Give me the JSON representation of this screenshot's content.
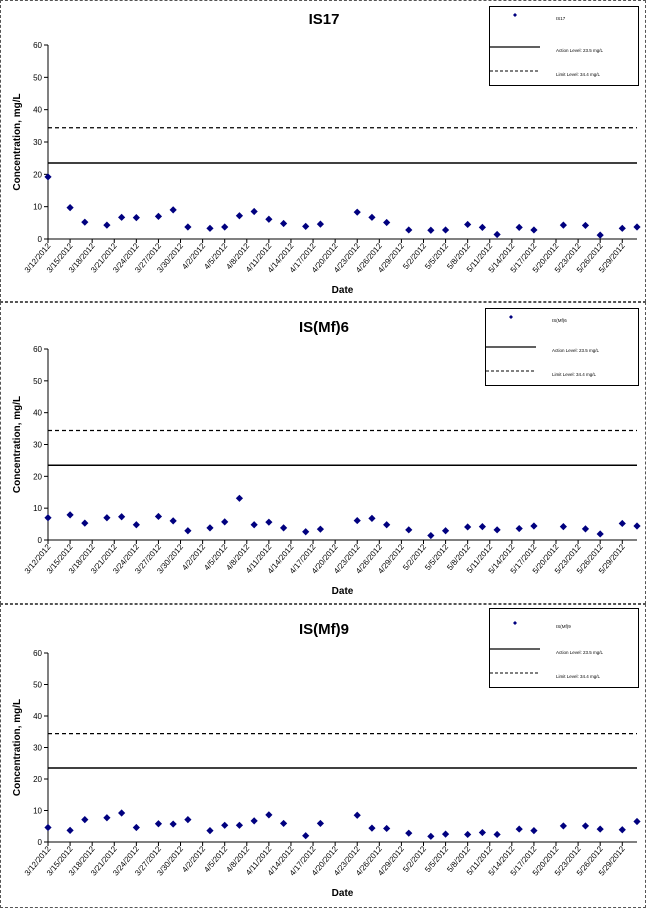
{
  "chart_data": [
    {
      "type": "scatter",
      "title": "IS17",
      "xlabel": "Date",
      "ylabel": "Concentration, mg/L",
      "ylim": [
        0,
        60
      ],
      "yticks": [
        0,
        10,
        20,
        30,
        40,
        50,
        60
      ],
      "x_tick_labels": [
        "3/12/2012",
        "3/15/2012",
        "3/18/2012",
        "3/21/2012",
        "3/24/2012",
        "3/27/2012",
        "3/30/2012",
        "4/2/2012",
        "4/5/2012",
        "4/8/2012",
        "4/11/2012",
        "4/14/2012",
        "4/17/2012",
        "4/20/2012",
        "4/23/2012",
        "4/26/2012",
        "4/29/2012",
        "5/2/2012",
        "5/5/2012",
        "5/8/2012",
        "5/11/2012",
        "5/14/2012",
        "5/17/2012",
        "5/20/2012",
        "5/23/2012",
        "5/26/2012",
        "5/29/2012"
      ],
      "xlim": [
        "2012-03-12",
        "2012-05-31"
      ],
      "series": [
        {
          "name": "IS17",
          "color": "#00007f",
          "x": [
            "2012-03-12",
            "2012-03-15",
            "2012-03-17",
            "2012-03-20",
            "2012-03-22",
            "2012-03-24",
            "2012-03-27",
            "2012-03-29",
            "2012-03-31",
            "2012-04-03",
            "2012-04-05",
            "2012-04-07",
            "2012-04-09",
            "2012-04-11",
            "2012-04-13",
            "2012-04-16",
            "2012-04-18",
            "2012-04-23",
            "2012-04-25",
            "2012-04-27",
            "2012-04-30",
            "2012-05-03",
            "2012-05-05",
            "2012-05-08",
            "2012-05-10",
            "2012-05-12",
            "2012-05-15",
            "2012-05-17",
            "2012-05-21",
            "2012-05-24",
            "2012-05-26",
            "2012-05-29",
            "2012-05-31"
          ],
          "y": [
            19.2,
            9.7,
            5.2,
            4.3,
            6.7,
            6.6,
            7.0,
            9.0,
            3.7,
            3.3,
            3.7,
            7.2,
            8.5,
            6.1,
            4.8,
            3.9,
            4.6,
            8.3,
            6.7,
            5.1,
            2.8,
            2.7,
            2.8,
            4.5,
            3.6,
            1.4,
            3.6,
            2.8,
            4.3,
            4.2,
            1.2,
            3.3,
            3.7
          ]
        }
      ],
      "reference_lines": [
        {
          "value": 23.5,
          "style": "solid"
        },
        {
          "value": 34.4,
          "style": "dashed"
        }
      ],
      "legend": {
        "placement": "top-right",
        "entries": [
          "IS17",
          "Action Level: 23.5 mg/L",
          "Limit Level: 34.4 mg/L"
        ]
      }
    },
    {
      "type": "scatter",
      "title": "IS(Mf)6",
      "xlabel": "Date",
      "ylabel": "Concentration, mg/L",
      "ylim": [
        0,
        60
      ],
      "yticks": [
        0,
        10,
        20,
        30,
        40,
        50,
        60
      ],
      "x_tick_labels": [
        "3/12/2012",
        "3/15/2012",
        "3/18/2012",
        "3/21/2012",
        "3/24/2012",
        "3/27/2012",
        "3/30/2012",
        "4/2/2012",
        "4/5/2012",
        "4/8/2012",
        "4/11/2012",
        "4/14/2012",
        "4/17/2012",
        "4/20/2012",
        "4/23/2012",
        "4/26/2012",
        "4/29/2012",
        "5/2/2012",
        "5/5/2012",
        "5/8/2012",
        "5/11/2012",
        "5/14/2012",
        "5/17/2012",
        "5/20/2012",
        "5/23/2012",
        "5/26/2012",
        "5/29/2012"
      ],
      "xlim": [
        "2012-03-12",
        "2012-05-31"
      ],
      "series": [
        {
          "name": "IS(Mf)6",
          "color": "#00007f",
          "x": [
            "2012-03-12",
            "2012-03-15",
            "2012-03-17",
            "2012-03-20",
            "2012-03-22",
            "2012-03-24",
            "2012-03-27",
            "2012-03-29",
            "2012-03-31",
            "2012-04-03",
            "2012-04-05",
            "2012-04-07",
            "2012-04-09",
            "2012-04-11",
            "2012-04-13",
            "2012-04-16",
            "2012-04-18",
            "2012-04-23",
            "2012-04-25",
            "2012-04-27",
            "2012-04-30",
            "2012-05-03",
            "2012-05-05",
            "2012-05-08",
            "2012-05-10",
            "2012-05-12",
            "2012-05-15",
            "2012-05-17",
            "2012-05-21",
            "2012-05-24",
            "2012-05-26",
            "2012-05-29",
            "2012-05-31"
          ],
          "y": [
            7.0,
            7.9,
            5.3,
            7.0,
            7.3,
            4.8,
            7.4,
            6.0,
            2.9,
            3.8,
            5.7,
            13.1,
            4.8,
            5.6,
            3.8,
            2.6,
            3.4,
            6.1,
            6.8,
            4.8,
            3.2,
            1.4,
            2.9,
            4.1,
            4.2,
            3.2,
            3.6,
            4.4,
            4.2,
            3.5,
            1.9,
            5.2,
            4.4
          ]
        }
      ],
      "reference_lines": [
        {
          "value": 23.5,
          "style": "solid"
        },
        {
          "value": 34.4,
          "style": "dashed"
        }
      ],
      "legend": {
        "placement": "top-right",
        "entries": [
          "IS(Mf)6",
          "Action Level: 23.5 mg/L",
          "Limit Level: 34.4 mg/L"
        ]
      }
    },
    {
      "type": "scatter",
      "title": "IS(Mf)9",
      "xlabel": "Date",
      "ylabel": "Concentration, mg/L",
      "ylim": [
        0,
        60
      ],
      "yticks": [
        0,
        10,
        20,
        30,
        40,
        50,
        60
      ],
      "x_tick_labels": [
        "3/12/2012",
        "3/15/2012",
        "3/18/2012",
        "3/21/2012",
        "3/24/2012",
        "3/27/2012",
        "3/30/2012",
        "4/2/2012",
        "4/5/2012",
        "4/8/2012",
        "4/11/2012",
        "4/14/2012",
        "4/17/2012",
        "4/20/2012",
        "4/23/2012",
        "4/26/2012",
        "4/29/2012",
        "5/2/2012",
        "5/5/2012",
        "5/8/2012",
        "5/11/2012",
        "5/14/2012",
        "5/17/2012",
        "5/20/2012",
        "5/23/2012",
        "5/26/2012",
        "5/29/2012"
      ],
      "xlim": [
        "2012-03-12",
        "2012-05-31"
      ],
      "series": [
        {
          "name": "IS(Mf)9",
          "color": "#00007f",
          "x": [
            "2012-03-12",
            "2012-03-15",
            "2012-03-17",
            "2012-03-20",
            "2012-03-22",
            "2012-03-24",
            "2012-03-27",
            "2012-03-29",
            "2012-03-31",
            "2012-04-03",
            "2012-04-05",
            "2012-04-07",
            "2012-04-09",
            "2012-04-11",
            "2012-04-13",
            "2012-04-16",
            "2012-04-18",
            "2012-04-23",
            "2012-04-25",
            "2012-04-27",
            "2012-04-30",
            "2012-05-03",
            "2012-05-05",
            "2012-05-08",
            "2012-05-10",
            "2012-05-12",
            "2012-05-15",
            "2012-05-17",
            "2012-05-21",
            "2012-05-24",
            "2012-05-26",
            "2012-05-29",
            "2012-05-31"
          ],
          "y": [
            4.6,
            3.7,
            7.1,
            7.7,
            9.2,
            4.6,
            5.8,
            5.7,
            7.1,
            3.6,
            5.3,
            5.3,
            6.7,
            8.6,
            5.9,
            2.0,
            5.9,
            8.5,
            4.4,
            4.3,
            2.8,
            1.8,
            2.5,
            2.4,
            3.0,
            2.4,
            4.1,
            3.6,
            5.1,
            5.1,
            4.1,
            3.9,
            6.5
          ]
        }
      ],
      "reference_lines": [
        {
          "value": 23.5,
          "style": "solid"
        },
        {
          "value": 34.4,
          "style": "dashed"
        }
      ],
      "legend": {
        "placement": "top-right",
        "entries": [
          "IS(Mf)9",
          "Action Level: 23.5 mg/L",
          "Limit Level: 34.4 mg/L"
        ]
      }
    }
  ]
}
